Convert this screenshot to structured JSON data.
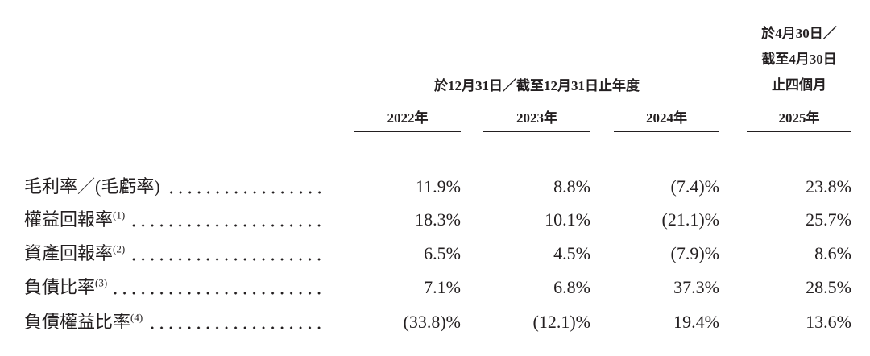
{
  "header": {
    "group_title": "於12月31日／截至12月31日止年度",
    "last_title": [
      "於4月30日／",
      "截至4月30日",
      "止四個月"
    ],
    "years": [
      "2022年",
      "2023年",
      "2024年",
      "2025年"
    ]
  },
  "table": {
    "rows": [
      {
        "label": "毛利率／(毛虧率)",
        "note": null,
        "values": [
          "11.9%",
          "8.8%",
          "(7.4)%",
          "23.8%"
        ]
      },
      {
        "label": "權益回報率",
        "note": "(1)",
        "values": [
          "18.3%",
          "10.1%",
          "(21.1)%",
          "25.7%"
        ]
      },
      {
        "label": "資產回報率",
        "note": "(2)",
        "values": [
          "6.5%",
          "4.5%",
          "(7.9)%",
          "8.6%"
        ]
      },
      {
        "label": "負債比率",
        "note": "(3)",
        "values": [
          "7.1%",
          "6.8%",
          "37.3%",
          "28.5%"
        ]
      },
      {
        "label": "負債權益比率",
        "note": "(4)",
        "values": [
          "(33.8)%",
          "(12.1)%",
          "19.4%",
          "13.6%"
        ]
      }
    ]
  }
}
